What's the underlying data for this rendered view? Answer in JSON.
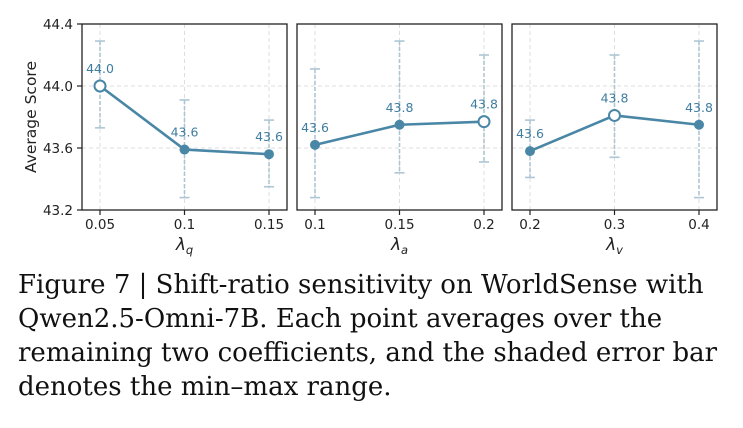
{
  "chart_data": [
    {
      "type": "line",
      "xlabel": "λq",
      "ylabel": "Average Score",
      "categories": [
        "0.05",
        "0.1",
        "0.15"
      ],
      "values": [
        44.0,
        43.59,
        43.56
      ],
      "mins": [
        43.73,
        43.28,
        43.35
      ],
      "maxs": [
        44.29,
        43.91,
        43.78
      ],
      "value_labels": [
        "44.0",
        "43.6",
        "43.6"
      ],
      "best_index": 0,
      "ylim": [
        43.2,
        44.4
      ],
      "yticks": [
        "43.2",
        "43.6",
        "44.0",
        "44.4"
      ],
      "grid": true
    },
    {
      "type": "line",
      "xlabel": "λa",
      "categories": [
        "0.1",
        "0.15",
        "0.2"
      ],
      "values": [
        43.62,
        43.75,
        43.77
      ],
      "mins": [
        43.28,
        43.44,
        43.51
      ],
      "maxs": [
        44.11,
        44.29,
        44.2
      ],
      "value_labels": [
        "43.6",
        "43.8",
        "43.8"
      ],
      "best_index": 2,
      "ylim": [
        43.2,
        44.4
      ],
      "grid": true
    },
    {
      "type": "line",
      "xlabel": "λv",
      "categories": [
        "0.2",
        "0.3",
        "0.4"
      ],
      "values": [
        43.58,
        43.81,
        43.75
      ],
      "mins": [
        43.41,
        43.54,
        43.28
      ],
      "maxs": [
        43.78,
        44.2,
        44.29
      ],
      "value_labels": [
        "43.6",
        "43.8",
        "43.8"
      ],
      "best_index": 1,
      "ylim": [
        43.2,
        44.4
      ],
      "grid": true
    }
  ],
  "colors": {
    "line": "#4a86a6",
    "errorbar": "#aec6d4",
    "label": "#3f7da0",
    "grid": "#dddddd",
    "axis": "#222222"
  },
  "caption": "Figure 7 | Shift-ratio sensitivity on WorldSense with Qwen2.5-Omni-7B. Each point averages over the remaining two coefficients, and the shaded error bar denotes the min–max range."
}
